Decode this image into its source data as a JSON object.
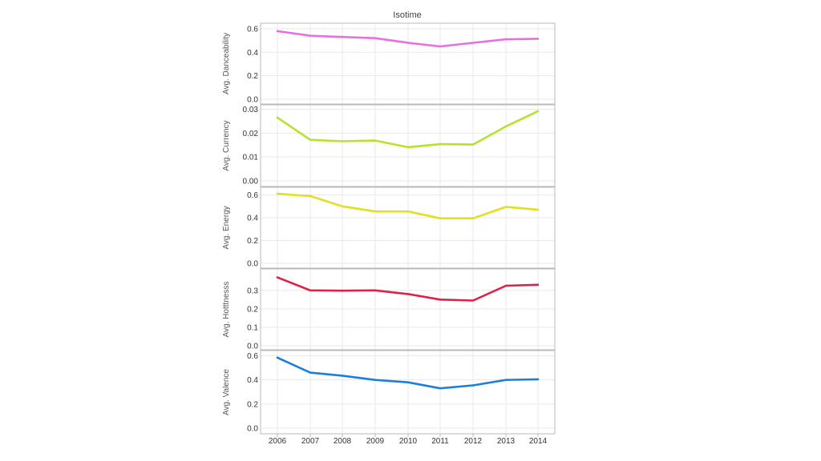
{
  "chart_data": {
    "type": "line",
    "title": "Isotime",
    "x": [
      "2006",
      "2007",
      "2008",
      "2009",
      "2010",
      "2011",
      "2012",
      "2013",
      "2014"
    ],
    "grid": true,
    "legend": "none",
    "panels": [
      {
        "ylabel": "Avg. Danceability",
        "color": "#e86fe0",
        "ylim": [
          0,
          0.62
        ],
        "yticks": [
          "0.0",
          "0.2",
          "0.4",
          "0.6"
        ],
        "ytick_values": [
          0,
          0.2,
          0.4,
          0.6
        ],
        "values": [
          0.58,
          0.54,
          0.53,
          0.52,
          0.48,
          0.45,
          0.48,
          0.51,
          0.515
        ]
      },
      {
        "ylabel": "Avg. Currency",
        "color": "#b5e32c",
        "ylim": [
          0,
          0.0305
        ],
        "yticks": [
          "0.00",
          "0.01",
          "0.02",
          "0.03"
        ],
        "ytick_values": [
          0,
          0.01,
          0.02,
          0.03
        ],
        "values": [
          0.0265,
          0.0172,
          0.0166,
          0.0169,
          0.0141,
          0.0154,
          0.0152,
          0.0228,
          0.0292
        ]
      },
      {
        "ylabel": "Avg. Energy",
        "color": "#e3df20",
        "ylim": [
          0,
          0.625
        ],
        "yticks": [
          "0.0",
          "0.2",
          "0.4",
          "0.6"
        ],
        "ytick_values": [
          0,
          0.2,
          0.4,
          0.6
        ],
        "values": [
          0.61,
          0.59,
          0.5,
          0.455,
          0.455,
          0.395,
          0.395,
          0.495,
          0.47
        ]
      },
      {
        "ylabel": "Avg. Hotttnesss",
        "color": "#e21f45",
        "ylim": [
          0,
          0.39
        ],
        "yticks": [
          "0.0",
          "0.1",
          "0.2",
          "0.3"
        ],
        "ytick_values": [
          0,
          0.1,
          0.2,
          0.3
        ],
        "values": [
          0.37,
          0.3,
          0.298,
          0.3,
          0.28,
          0.25,
          0.245,
          0.325,
          0.33
        ]
      },
      {
        "ylabel": "Avg. Valence",
        "color": "#1d7fdc",
        "ylim": [
          0,
          0.61
        ],
        "yticks": [
          "0.0",
          "0.2",
          "0.4",
          "0.6"
        ],
        "ytick_values": [
          0,
          0.2,
          0.4,
          0.6
        ],
        "values": [
          0.585,
          0.46,
          0.435,
          0.4,
          0.38,
          0.33,
          0.355,
          0.4,
          0.405
        ]
      }
    ]
  }
}
